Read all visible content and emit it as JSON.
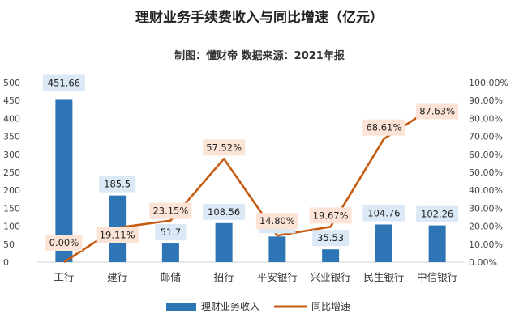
{
  "chart_data": {
    "type": "bar",
    "title": "理财业务手续费收入与同比增速（亿元）",
    "subtitle": "制图：懂财帝 数据来源：2021年报",
    "categories": [
      "工行",
      "建行",
      "邮储",
      "招行",
      "平安银行",
      "兴业银行",
      "民生银行",
      "中信银行"
    ],
    "series": [
      {
        "name": "理财业务收入",
        "type": "bar",
        "axis": "left",
        "values": [
          451.66,
          185.5,
          51.7,
          108.56,
          71.31,
          35.53,
          104.76,
          102.26
        ],
        "labels": [
          "451.66",
          "185.5",
          "51.7",
          "108.56",
          "71.31",
          "35.53",
          "104.76",
          "102.26"
        ],
        "color": "#2e75b6"
      },
      {
        "name": "同比增速",
        "type": "line",
        "axis": "right",
        "values": [
          0.0,
          19.11,
          23.15,
          57.52,
          14.8,
          19.67,
          68.61,
          87.63
        ],
        "labels": [
          "0.00%",
          "19.11%",
          "23.15%",
          "57.52%",
          "14.80%",
          "19.67%",
          "68.61%",
          "87.63%"
        ],
        "color": "#c55a11"
      }
    ],
    "y_left": {
      "range": [
        0,
        500
      ],
      "ticks": [
        0,
        50,
        100,
        150,
        200,
        250,
        300,
        350,
        400,
        450,
        500
      ],
      "tick_labels": [
        "0",
        "50",
        "100",
        "150",
        "200",
        "250",
        "300",
        "350",
        "400",
        "450",
        "500"
      ]
    },
    "y_right": {
      "range": [
        0,
        100
      ],
      "ticks": [
        0,
        10,
        20,
        30,
        40,
        50,
        60,
        70,
        80,
        90,
        100
      ],
      "tick_labels": [
        "0.00%",
        "10.00%",
        "20.00%",
        "30.00%",
        "40.00%",
        "50.00%",
        "60.00%",
        "70.00%",
        "80.00%",
        "90.00%",
        "100.00%"
      ]
    },
    "grid": false,
    "legend_position": "bottom",
    "bar_label_bg": "#dbe8f5",
    "line_label_bg": "#fbe3d6"
  }
}
